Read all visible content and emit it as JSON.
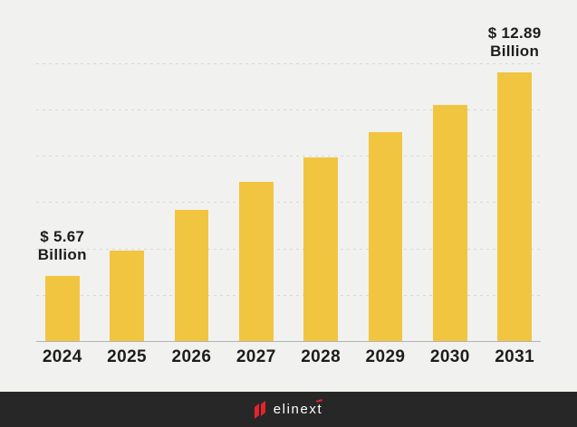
{
  "page": {
    "background": "#f1f1f0",
    "text_color": "#1d1d1b"
  },
  "chart_data": {
    "type": "bar",
    "title": "",
    "xlabel": "",
    "ylabel": "",
    "categories": [
      "2024",
      "2025",
      "2026",
      "2027",
      "2028",
      "2029",
      "2030",
      "2031"
    ],
    "values": [
      5.67,
      6.57,
      8.01,
      9.01,
      9.87,
      10.77,
      11.74,
      12.89
    ],
    "unit": "USD Billion",
    "annotations": [
      {
        "index": 0,
        "lines": [
          "$ 5.67",
          "Billion"
        ]
      },
      {
        "index": 7,
        "lines": [
          "$ 12.89",
          "Billion"
        ]
      }
    ],
    "bar_color": "#f2c541",
    "grid": "horizontal-dashed",
    "gridline_count": 6,
    "gridline_color": "#d8d8d8",
    "baseline_color": "#b3b3b3",
    "legend": "none",
    "y_axis_labels": "none"
  },
  "footer": {
    "background": "#272727",
    "logo_text": "elinext",
    "logo_text_color": "#ffffff",
    "logo_mark_color": "#e5242b"
  }
}
